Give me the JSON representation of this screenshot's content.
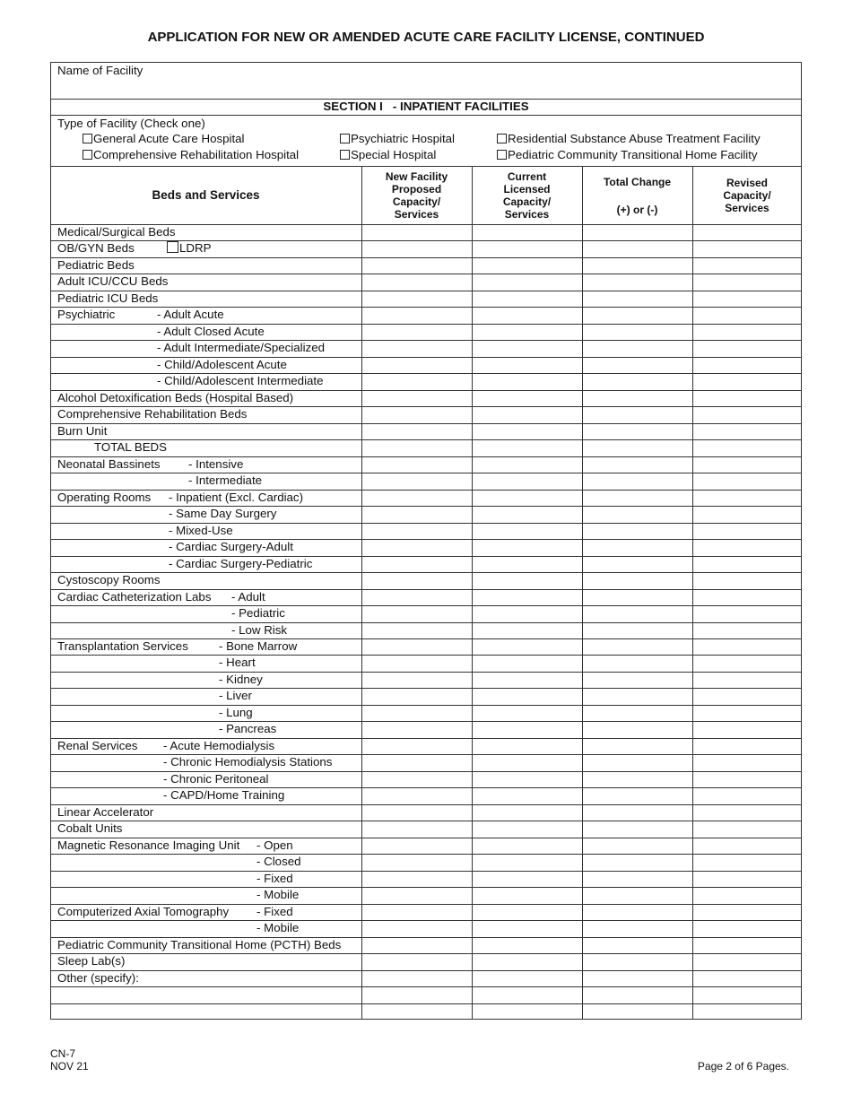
{
  "title": "APPLICATION FOR NEW OR AMENDED ACUTE CARE FACILITY LICENSE, CONTINUED",
  "facility_name_label": "Name of Facility",
  "facility_name_value": "",
  "section_title": "SECTION I   - INPATIENT FACILITIES",
  "facility_type": {
    "label": "Type of Facility (Check one)",
    "options": [
      {
        "label": "General Acute Care Hospital",
        "checked": false
      },
      {
        "label": "Comprehensive Rehabilitation Hospital",
        "checked": false
      },
      {
        "label": "Psychiatric Hospital",
        "checked": false
      },
      {
        "label": "Special Hospital",
        "checked": false
      },
      {
        "label": "Residential Substance Abuse Treatment Facility",
        "checked": false
      },
      {
        "label": "Pediatric Community Transitional Home Facility",
        "checked": false
      }
    ]
  },
  "columns": [
    "Beds and Services",
    "New Facility Proposed Capacity/ Services",
    "Current Licensed Capacity/ Services",
    "Total Change",
    "(+) or (-)",
    "Revised Capacity/ Services"
  ],
  "rows": [
    {
      "label": "Medical/Surgical Beds",
      "sub": ""
    },
    {
      "label": "OB/GYN Beds",
      "sub": "LDRP"
    },
    {
      "label": "Pediatric Beds",
      "sub": ""
    },
    {
      "label": "Adult ICU/CCU Beds",
      "sub": ""
    },
    {
      "label": "Pediatric ICU Beds",
      "sub": ""
    },
    {
      "label": "Psychiatric",
      "sub": "- Adult Acute"
    },
    {
      "label": "",
      "sub": "- Adult Closed Acute"
    },
    {
      "label": "",
      "sub": "- Adult Intermediate/Specialized"
    },
    {
      "label": "",
      "sub": "- Child/Adolescent Acute"
    },
    {
      "label": "",
      "sub": "- Child/Adolescent Intermediate"
    },
    {
      "label": "Alcohol Detoxification Beds (Hospital Based)",
      "sub": ""
    },
    {
      "label": "Comprehensive Rehabilitation Beds",
      "sub": ""
    },
    {
      "label": "Burn Unit",
      "sub": ""
    },
    {
      "label": "",
      "sub": "TOTAL BEDS"
    },
    {
      "label": "Neonatal Bassinets",
      "sub": "- Intensive"
    },
    {
      "label": "",
      "sub": "- Intermediate"
    },
    {
      "label": "Operating Rooms",
      "sub": "- Inpatient (Excl. Cardiac)"
    },
    {
      "label": "",
      "sub": "- Same Day Surgery"
    },
    {
      "label": "",
      "sub": "- Mixed-Use"
    },
    {
      "label": "",
      "sub": "- Cardiac Surgery-Adult"
    },
    {
      "label": "",
      "sub": "- Cardiac Surgery-Pediatric"
    },
    {
      "label": "Cystoscopy Rooms",
      "sub": ""
    },
    {
      "label": "Cardiac Catheterization Labs",
      "sub": "- Adult"
    },
    {
      "label": "",
      "sub": "- Pediatric"
    },
    {
      "label": "",
      "sub": "- Low Risk"
    },
    {
      "label": "Transplantation Services",
      "sub": "- Bone Marrow"
    },
    {
      "label": "",
      "sub": "- Heart"
    },
    {
      "label": "",
      "sub": "- Kidney"
    },
    {
      "label": "",
      "sub": "- Liver"
    },
    {
      "label": "",
      "sub": "- Lung"
    },
    {
      "label": "",
      "sub": "- Pancreas"
    },
    {
      "label": "Renal Services",
      "sub": "- Acute Hemodialysis"
    },
    {
      "label": "",
      "sub": "- Chronic Hemodialysis Stations"
    },
    {
      "label": "",
      "sub": "- Chronic Peritoneal"
    },
    {
      "label": "",
      "sub": "- CAPD/Home Training"
    },
    {
      "label": "Linear Accelerator",
      "sub": ""
    },
    {
      "label": "Cobalt Units",
      "sub": ""
    },
    {
      "label": "Magnetic Resonance Imaging Unit",
      "sub": "- Open"
    },
    {
      "label": "",
      "sub": "- Closed"
    },
    {
      "label": "",
      "sub": "- Fixed"
    },
    {
      "label": "",
      "sub": "- Mobile"
    },
    {
      "label": "Computerized Axial Tomography",
      "sub": "- Fixed"
    },
    {
      "label": "",
      "sub": "- Mobile"
    },
    {
      "label": "Pediatric Community Transitional Home (PCTH) Beds",
      "sub": ""
    },
    {
      "label": "Sleep Lab(s)",
      "sub": ""
    },
    {
      "label": "Other (specify):",
      "sub": ""
    },
    {
      "label": "",
      "sub": ""
    },
    {
      "label": "",
      "sub": ""
    }
  ],
  "footer": {
    "form_id": "CN-7",
    "date": "NOV 21",
    "page": "Page 2 of 6 Pages."
  }
}
